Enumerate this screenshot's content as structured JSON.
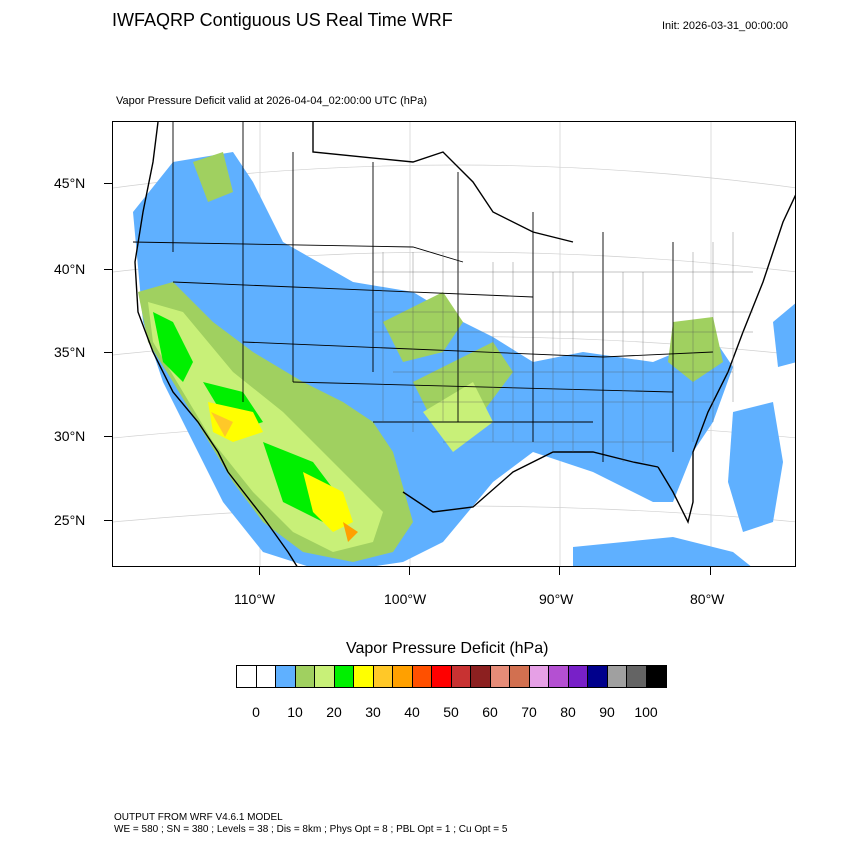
{
  "header": {
    "title": "IWFAQRP Contiguous US Real Time WRF",
    "init": "Init: 2026-03-31_00:00:00",
    "subtitle": "Vapor Pressure Deficit valid at 2026-04-04_02:00:00 UTC   (hPa)"
  },
  "map": {
    "lat_labels": [
      "45°N",
      "40°N",
      "35°N",
      "30°N",
      "25°N"
    ],
    "lon_labels": [
      "110°W",
      "100°W",
      "90°W",
      "80°W"
    ],
    "field": "Vapor Pressure Deficit"
  },
  "colorbar": {
    "title": "Vapor Pressure Deficit  (hPa)",
    "colors": [
      "#ffffff",
      "#ffffff",
      "#5fb0ff",
      "#a0d060",
      "#c8f078",
      "#00f000",
      "#ffff00",
      "#ffc828",
      "#ffa000",
      "#ff5000",
      "#ff0000",
      "#c83232",
      "#8c2020",
      "#e68c78",
      "#d27050",
      "#e6a0e6",
      "#b450d2",
      "#7820c8",
      "#00008c",
      "#a0a0a0",
      "#646464",
      "#000000"
    ],
    "labels": [
      "0",
      "10",
      "20",
      "30",
      "40",
      "50",
      "60",
      "70",
      "80",
      "90",
      "100"
    ]
  },
  "footer": {
    "line1": "OUTPUT FROM WRF V4.6.1 MODEL",
    "line2": "WE = 580 ; SN = 380 ; Levels = 38 ; Dis = 8km ; Phys Opt = 8 ; PBL Opt = 1 ; Cu Opt = 5"
  }
}
